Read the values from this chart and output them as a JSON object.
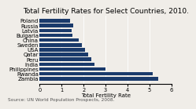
{
  "title": "Total Fertility Rates for Select Countries, 2010.",
  "xlabel": "Total Fertility Rate",
  "source": "Source: UN World Population Prospects, 2008.",
  "categories": [
    "Poland",
    "Russia",
    "Latvia",
    "Bulgaria",
    "China",
    "Sweden",
    "USA",
    "Qatar",
    "Peru",
    "India",
    "Philippines",
    "Rwanda",
    "Zambia"
  ],
  "values": [
    1.38,
    1.54,
    1.45,
    1.49,
    1.77,
    1.94,
    2.06,
    2.2,
    2.35,
    2.5,
    2.98,
    5.15,
    5.4
  ],
  "bar_color": "#1a3a6b",
  "xlim": [
    0,
    6
  ],
  "xticks": [
    0,
    1,
    2,
    3,
    4,
    5,
    6
  ],
  "background_color": "#f0ede8",
  "title_fontsize": 6.5,
  "label_fontsize": 5.0,
  "tick_fontsize": 4.8,
  "source_fontsize": 4.2
}
